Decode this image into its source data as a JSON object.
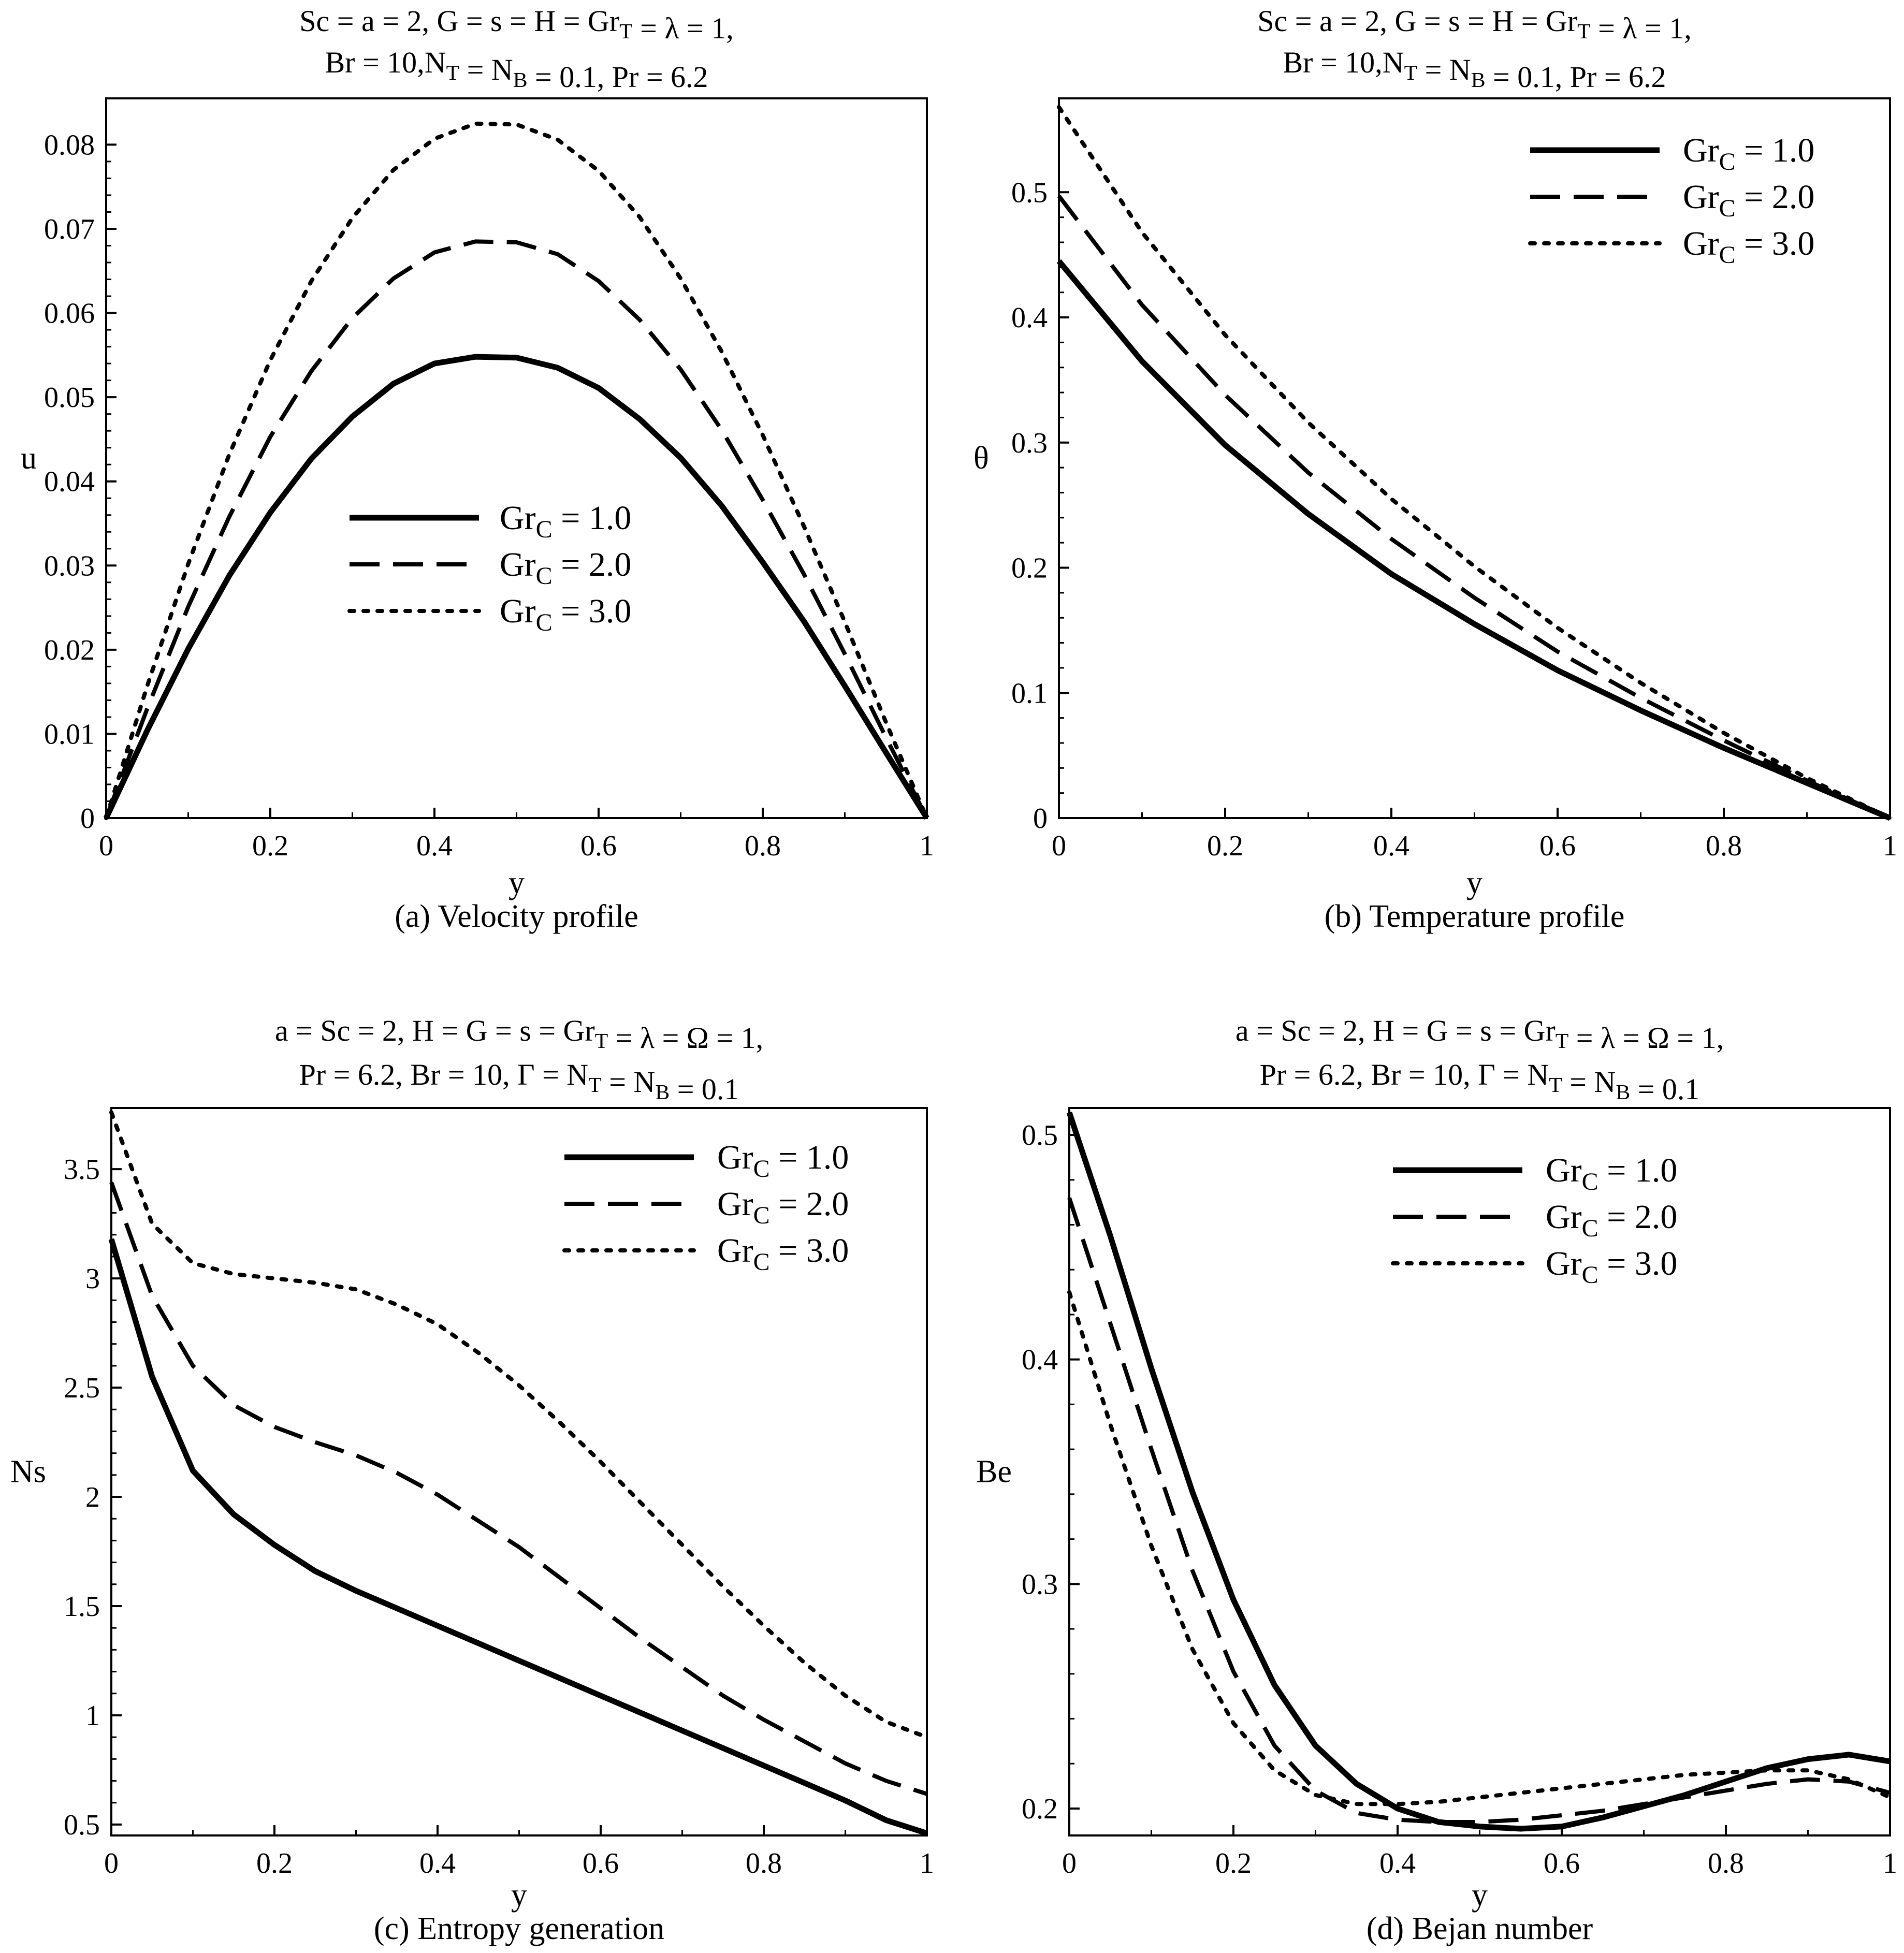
{
  "figure": {
    "name": "entropy-figure"
  },
  "chart_data": [
    {
      "id": "a",
      "type": "line",
      "title": [
        [
          "Sc = a  = 2, G = s = H  = Gr",
          {
            "sub": "T"
          },
          " =  λ = 1,"
        ],
        [
          "Br = 10,N",
          {
            "sub": "T"
          },
          " = N",
          {
            "sub": "B"
          },
          " =  0.1, Pr = 6.2"
        ]
      ],
      "title_text": [
        "Sc = a  = 2, G = s = H  = Gr",
        "T",
        " =  λ = 1,",
        "Br = 10,N",
        "T",
        " = N",
        "B",
        " =  0.1, Pr = 6.2"
      ],
      "xlabel": "y",
      "ylabel": "u",
      "caption": "(a) Velocity profile",
      "xlim": [
        0,
        1
      ],
      "ylim": [
        0,
        0.0855
      ],
      "xticks": [
        0,
        0.2,
        0.4,
        0.6,
        0.8,
        1
      ],
      "xtick_labels": [
        "0",
        "0.2",
        "0.4",
        "0.6",
        "0.8",
        "1"
      ],
      "yticks": [
        0,
        0.01,
        0.02,
        0.03,
        0.04,
        0.05,
        0.06,
        0.07,
        0.08
      ],
      "ytick_labels": [
        "0",
        "0.01",
        "0.02",
        "0.03",
        "0.04",
        "0.05",
        "0.06",
        "0.07",
        "0.08"
      ],
      "legend_position": "center",
      "x": [
        0,
        0.05,
        0.1,
        0.15,
        0.2,
        0.25,
        0.3,
        0.35,
        0.4,
        0.45,
        0.5,
        0.55,
        0.6,
        0.65,
        0.7,
        0.75,
        0.8,
        0.85,
        0.9,
        0.95,
        1
      ],
      "series": [
        {
          "name": "Gr_C = 1.0",
          "label": [
            "Gr",
            "C",
            " = 1.0"
          ],
          "style": "solid",
          "values": [
            0,
            0.0104,
            0.0201,
            0.0288,
            0.0363,
            0.0427,
            0.0477,
            0.0516,
            0.054,
            0.0548,
            0.0547,
            0.0535,
            0.0511,
            0.0474,
            0.0428,
            0.0371,
            0.0304,
            0.0234,
            0.0157,
            0.0078,
            0
          ]
        },
        {
          "name": "Gr_C = 2.0",
          "label": [
            "Gr",
            "C",
            " = 2.0"
          ],
          "style": "dashed",
          "values": [
            0,
            0.013,
            0.0251,
            0.0358,
            0.0453,
            0.0531,
            0.0594,
            0.0641,
            0.0672,
            0.0685,
            0.0684,
            0.067,
            0.0638,
            0.0592,
            0.0533,
            0.0461,
            0.0378,
            0.029,
            0.0195,
            0.0096,
            0
          ]
        },
        {
          "name": "Gr_C = 3.0",
          "label": [
            "Gr",
            "C",
            " = 3.0"
          ],
          "style": "dotted",
          "values": [
            0,
            0.0157,
            0.0302,
            0.0432,
            0.0544,
            0.0638,
            0.0713,
            0.077,
            0.0807,
            0.0825,
            0.0824,
            0.0806,
            0.0769,
            0.0714,
            0.0641,
            0.0554,
            0.0455,
            0.0347,
            0.0233,
            0.0114,
            0
          ]
        }
      ]
    },
    {
      "id": "b",
      "type": "line",
      "title": [
        [
          "Sc = a  = 2, G = s = H  = Gr",
          {
            "sub": "T"
          },
          " =  λ = 1,"
        ],
        [
          "Br = 10,N",
          {
            "sub": "T"
          },
          " = N",
          {
            "sub": "B"
          },
          " =  0.1, Pr = 6.2"
        ]
      ],
      "title_text": [
        "Sc = a  = 2, G = s = H  = Gr",
        "T",
        " =  λ = 1,",
        "Br = 10,N",
        "T",
        " = N",
        "B",
        " =  0.1, Pr = 6.2"
      ],
      "xlabel": "y",
      "ylabel": "θ",
      "caption": "(b) Temperature profile",
      "xlim": [
        0,
        1
      ],
      "ylim": [
        0,
        0.575
      ],
      "xticks": [
        0,
        0.2,
        0.4,
        0.6,
        0.8,
        1
      ],
      "xtick_labels": [
        "0",
        "0.2",
        "0.4",
        "0.6",
        "0.8",
        "1"
      ],
      "yticks": [
        0,
        0.1,
        0.2,
        0.3,
        0.4,
        0.5
      ],
      "ytick_labels": [
        "0",
        "0.1",
        "0.2",
        "0.3",
        "0.4",
        "0.5"
      ],
      "legend_position": "top-right",
      "x": [
        0,
        0.1,
        0.2,
        0.3,
        0.4,
        0.5,
        0.6,
        0.7,
        0.8,
        0.9,
        1
      ],
      "series": [
        {
          "name": "Gr_C = 1.0",
          "label": [
            "Gr",
            "C",
            " = 1.0"
          ],
          "style": "solid",
          "values": [
            0.445,
            0.365,
            0.298,
            0.243,
            0.195,
            0.155,
            0.118,
            0.086,
            0.056,
            0.028,
            0
          ]
        },
        {
          "name": "Gr_C = 2.0",
          "label": [
            "Gr",
            "C",
            " = 2.0"
          ],
          "style": "dashed",
          "values": [
            0.497,
            0.41,
            0.338,
            0.276,
            0.223,
            0.176,
            0.133,
            0.096,
            0.062,
            0.03,
            0
          ]
        },
        {
          "name": "Gr_C = 3.0",
          "label": [
            "Gr",
            "C",
            " = 3.0"
          ],
          "style": "dotted",
          "values": [
            0.568,
            0.468,
            0.386,
            0.316,
            0.255,
            0.201,
            0.152,
            0.108,
            0.068,
            0.032,
            0
          ]
        }
      ]
    },
    {
      "id": "c",
      "type": "line",
      "title": [
        [
          "a = Sc = 2, H = G = s = Gr",
          {
            "sub": "T"
          },
          " = λ = Ω  = 1,"
        ],
        [
          "Pr = 6.2, Br = 10, Γ = N",
          {
            "sub": "T"
          },
          " = N",
          {
            "sub": "B"
          },
          " = 0.1"
        ]
      ],
      "title_text": [
        "a = Sc = 2, H = G = s = Gr",
        "T",
        " = λ = Ω  = 1,",
        "Pr = 6.2, Br = 10, Γ = N",
        "T",
        " = N",
        "B",
        " = 0.1"
      ],
      "xlabel": "y",
      "ylabel": "Ns",
      "caption": "(c) Entropy generation",
      "xlim": [
        0,
        1
      ],
      "ylim": [
        0.45,
        3.78
      ],
      "xticks": [
        0,
        0.2,
        0.4,
        0.6,
        0.8,
        1
      ],
      "xtick_labels": [
        "0",
        "0.2",
        "0.4",
        "0.6",
        "0.8",
        "1"
      ],
      "yticks": [
        0.5,
        1,
        1.5,
        2,
        2.5,
        3,
        3.5
      ],
      "ytick_labels": [
        "0.5",
        "1",
        "1.5",
        "2",
        "2.5",
        "3",
        "3.5"
      ],
      "legend_position": "top-right",
      "x": [
        0,
        0.05,
        0.1,
        0.15,
        0.2,
        0.25,
        0.3,
        0.35,
        0.4,
        0.45,
        0.5,
        0.55,
        0.6,
        0.65,
        0.7,
        0.75,
        0.8,
        0.85,
        0.9,
        0.95,
        1
      ],
      "series": [
        {
          "name": "Gr_C = 1.0",
          "label": [
            "Gr",
            "C",
            " = 1.0"
          ],
          "style": "solid",
          "values": [
            3.18,
            2.55,
            2.12,
            1.92,
            1.78,
            1.66,
            1.57,
            1.49,
            1.41,
            1.33,
            1.25,
            1.17,
            1.09,
            1.01,
            0.93,
            0.85,
            0.77,
            0.69,
            0.61,
            0.52,
            0.46
          ]
        },
        {
          "name": "Gr_C = 2.0",
          "label": [
            "Gr",
            "C",
            " = 2.0"
          ],
          "style": "dashed",
          "values": [
            3.44,
            2.92,
            2.6,
            2.42,
            2.32,
            2.25,
            2.19,
            2.11,
            2.01,
            1.89,
            1.77,
            1.63,
            1.49,
            1.35,
            1.22,
            1.09,
            0.98,
            0.88,
            0.78,
            0.7,
            0.64
          ]
        },
        {
          "name": "Gr_C = 3.0",
          "label": [
            "Gr",
            "C",
            " = 3.0"
          ],
          "style": "dotted",
          "values": [
            3.76,
            3.25,
            3.07,
            3.02,
            3.0,
            2.98,
            2.95,
            2.88,
            2.79,
            2.66,
            2.51,
            2.34,
            2.16,
            1.97,
            1.78,
            1.59,
            1.41,
            1.24,
            1.09,
            0.97,
            0.9
          ]
        }
      ]
    },
    {
      "id": "d",
      "type": "line",
      "title": [
        [
          "a = Sc = 2, H = G = s = Gr",
          {
            "sub": "T"
          },
          " = λ = Ω  = 1,"
        ],
        [
          "Pr = 6.2, Br = 10, Γ = N",
          {
            "sub": "T"
          },
          " = N",
          {
            "sub": "B"
          },
          " = 0.1"
        ]
      ],
      "title_text": [
        "a = Sc = 2, H = G = s = Gr",
        "T",
        " = λ = Ω  = 1,",
        "Pr = 6.2, Br = 10, Γ = N",
        "T",
        " = N",
        "B",
        " = 0.1"
      ],
      "xlabel": "y",
      "ylabel": "Be",
      "caption": "(d) Bejan number",
      "xlim": [
        0,
        1
      ],
      "ylim": [
        0.188,
        0.512
      ],
      "xticks": [
        0,
        0.2,
        0.4,
        0.6,
        0.8,
        1
      ],
      "xtick_labels": [
        "0",
        "0.2",
        "0.4",
        "0.6",
        "0.8",
        "1"
      ],
      "yticks": [
        0.2,
        0.3,
        0.4,
        0.5
      ],
      "ytick_labels": [
        "0.2",
        "0.3",
        "0.4",
        "0.5"
      ],
      "legend_position": "top-right",
      "x": [
        0,
        0.05,
        0.1,
        0.15,
        0.2,
        0.25,
        0.3,
        0.35,
        0.4,
        0.45,
        0.5,
        0.55,
        0.6,
        0.65,
        0.7,
        0.75,
        0.8,
        0.85,
        0.9,
        0.95,
        1
      ],
      "series": [
        {
          "name": "Gr_C = 1.0",
          "label": [
            "Gr",
            "C",
            " = 1.0"
          ],
          "style": "solid",
          "values": [
            0.51,
            0.455,
            0.396,
            0.341,
            0.293,
            0.255,
            0.228,
            0.211,
            0.2,
            0.194,
            0.192,
            0.191,
            0.192,
            0.196,
            0.201,
            0.206,
            0.212,
            0.218,
            0.222,
            0.224,
            0.221
          ]
        },
        {
          "name": "Gr_C = 2.0",
          "label": [
            "Gr",
            "C",
            " = 2.0"
          ],
          "style": "dashed",
          "values": [
            0.472,
            0.416,
            0.36,
            0.306,
            0.261,
            0.228,
            0.208,
            0.198,
            0.195,
            0.194,
            0.194,
            0.195,
            0.197,
            0.199,
            0.202,
            0.205,
            0.208,
            0.211,
            0.213,
            0.212,
            0.207
          ]
        },
        {
          "name": "Gr_C = 3.0",
          "label": [
            "Gr",
            "C",
            " = 3.0"
          ],
          "style": "dotted",
          "values": [
            0.43,
            0.371,
            0.317,
            0.271,
            0.238,
            0.217,
            0.206,
            0.202,
            0.202,
            0.203,
            0.205,
            0.207,
            0.209,
            0.211,
            0.213,
            0.215,
            0.216,
            0.217,
            0.217,
            0.213,
            0.205
          ]
        }
      ]
    }
  ]
}
